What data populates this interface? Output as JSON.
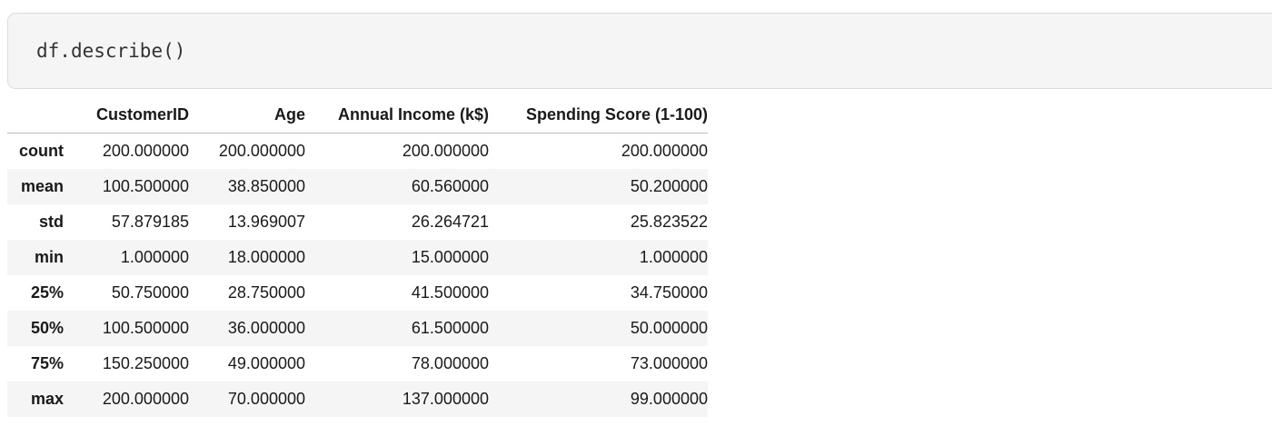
{
  "code_cell": {
    "code_object": "df",
    "code_dot": ".",
    "code_method": "describe",
    "code_parens": "()"
  },
  "table": {
    "columns": [
      "CustomerID",
      "Age",
      "Annual Income (k$)",
      "Spending Score (1-100)"
    ],
    "rows": [
      {
        "label": "count",
        "values": [
          "200.000000",
          "200.000000",
          "200.000000",
          "200.000000"
        ]
      },
      {
        "label": "mean",
        "values": [
          "100.500000",
          "38.850000",
          "60.560000",
          "50.200000"
        ]
      },
      {
        "label": "std",
        "values": [
          "57.879185",
          "13.969007",
          "26.264721",
          "25.823522"
        ]
      },
      {
        "label": "min",
        "values": [
          "1.000000",
          "18.000000",
          "15.000000",
          "1.000000"
        ]
      },
      {
        "label": "25%",
        "values": [
          "50.750000",
          "28.750000",
          "41.500000",
          "34.750000"
        ]
      },
      {
        "label": "50%",
        "values": [
          "100.500000",
          "36.000000",
          "61.500000",
          "50.000000"
        ]
      },
      {
        "label": "75%",
        "values": [
          "150.250000",
          "49.000000",
          "78.000000",
          "73.000000"
        ]
      },
      {
        "label": "max",
        "values": [
          "200.000000",
          "70.000000",
          "137.000000",
          "99.000000"
        ]
      }
    ]
  }
}
